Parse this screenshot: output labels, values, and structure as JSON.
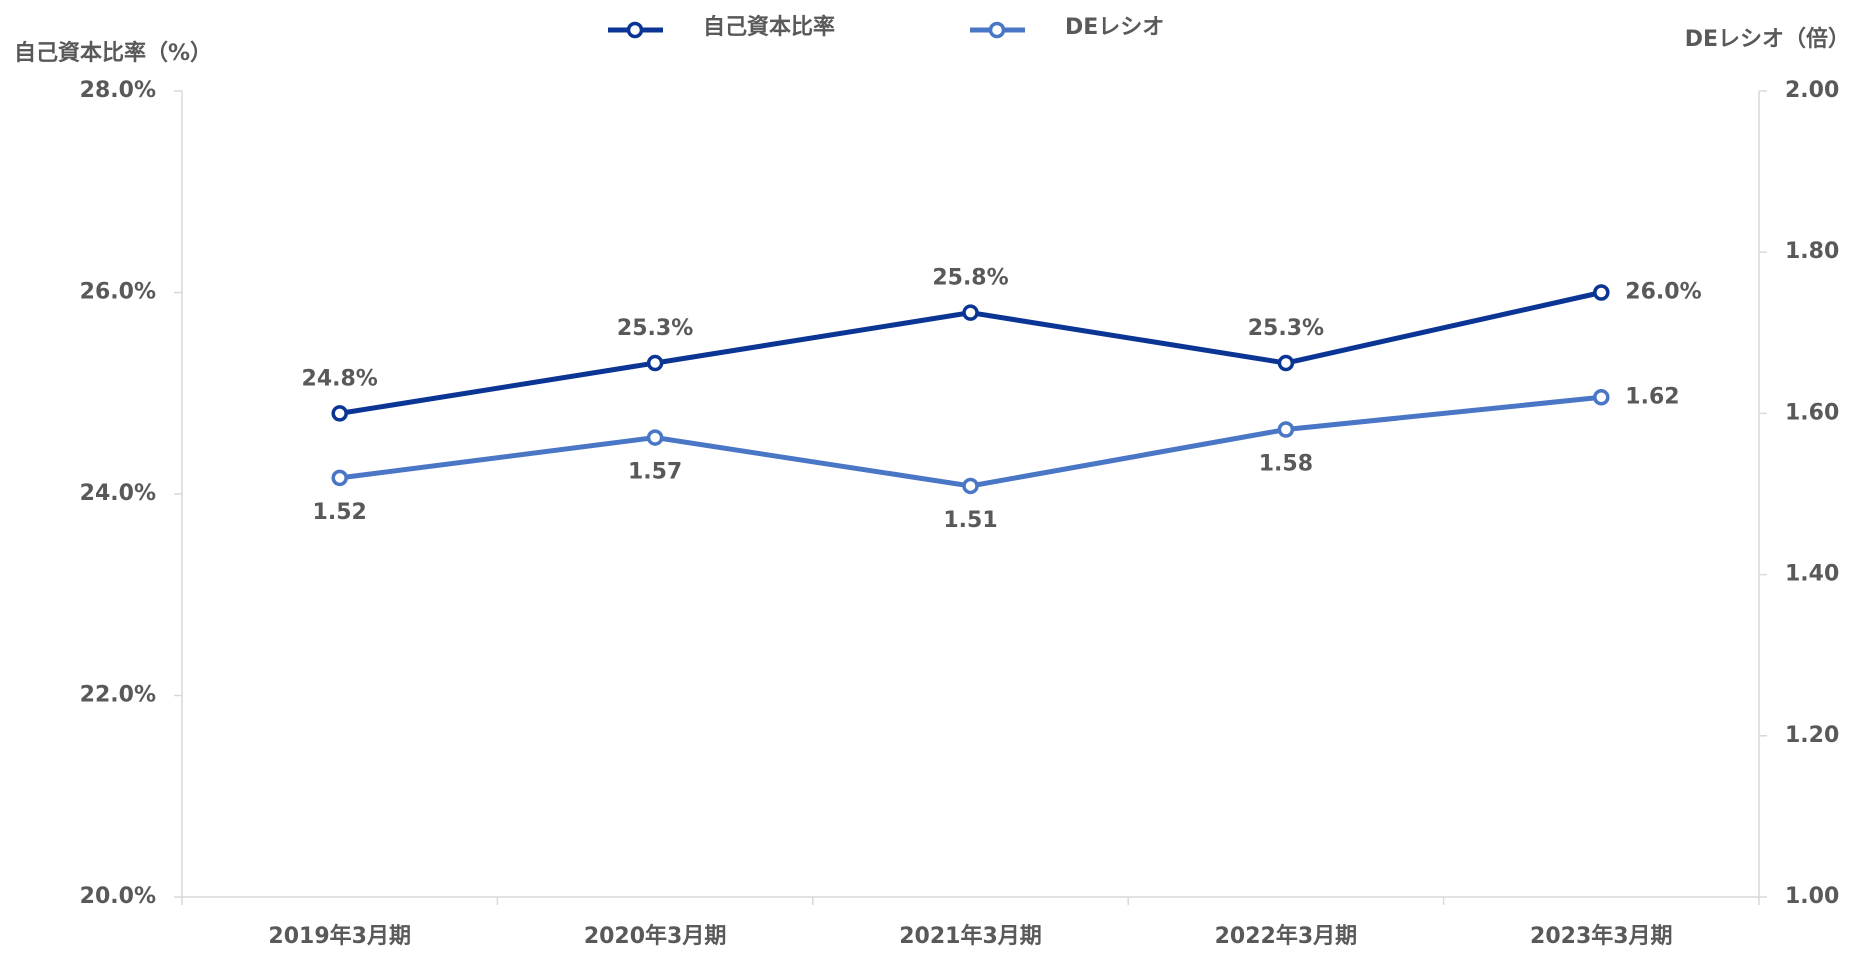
{
  "chart_data": {
    "type": "line",
    "categories": [
      "2019年3月期",
      "2020年3月期",
      "2021年3月期",
      "2022年3月期",
      "2023年3月期"
    ],
    "y_label": "自己資本比率（%）",
    "y2_label": "DEレシオ（倍）",
    "series": [
      {
        "name": "自己資本比率",
        "color": "#0b3595",
        "values": [
          24.8,
          25.3,
          25.8,
          25.3,
          26.0
        ],
        "value_labels": [
          "24.8%",
          "25.3%",
          "25.8%",
          "25.3%",
          "26.0%"
        ]
      },
      {
        "name": "DEレシオ",
        "color": "#4a76c6",
        "axis": "y2",
        "values": [
          1.52,
          1.57,
          1.51,
          1.58,
          1.62
        ]
      }
    ],
    "ylim": [
      20,
      28
    ],
    "yticks": [
      {
        "value": 20,
        "label": "20.0%"
      },
      {
        "value": 22,
        "label": "22.0%"
      },
      {
        "value": 24,
        "label": "24.0%"
      },
      {
        "value": 26,
        "label": "26.0%"
      },
      {
        "value": 28,
        "label": "28.0%"
      }
    ],
    "y2lim": [
      1,
      2
    ],
    "y2ticks": [
      {
        "value": 1,
        "label": "1.00"
      },
      {
        "value": 1.2,
        "label": "1.20"
      },
      {
        "value": 1.4,
        "label": "1.40"
      },
      {
        "value": 1.6,
        "label": "1.60"
      },
      {
        "value": 1.8,
        "label": "1.80"
      },
      {
        "value": 2,
        "label": "2.00"
      }
    ],
    "legend": "top"
  }
}
